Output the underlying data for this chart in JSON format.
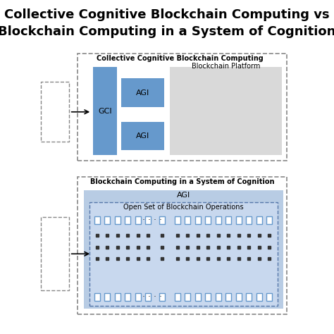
{
  "title_line1": "Collective Cognitive Blockchain Computing vs",
  "title_line2": "Blockchain Computing in a System of Cognition",
  "title_fontsize": 13,
  "blue_color": "#6699CC",
  "light_blue_bg": "#B8CCE4",
  "gray_color": "#D9D9D9",
  "dashed_border": "#888888",
  "white": "#FFFFFF",
  "top_label": "Collective Cognitive Blockchain Computing",
  "bottom_label": "Blockchain Computing in a System of Cognition",
  "gci_label": "GCI",
  "agi_label": "AGI",
  "blockchain_platform_label": "Blockchain Platform",
  "open_set_label": "Open Set of Blockchain Operations",
  "agi_top_label": "AGI",
  "inner_dashed_color": "#5577AA",
  "inner_dashed_fill": "#C8D8EE",
  "dot_color": "#333333"
}
